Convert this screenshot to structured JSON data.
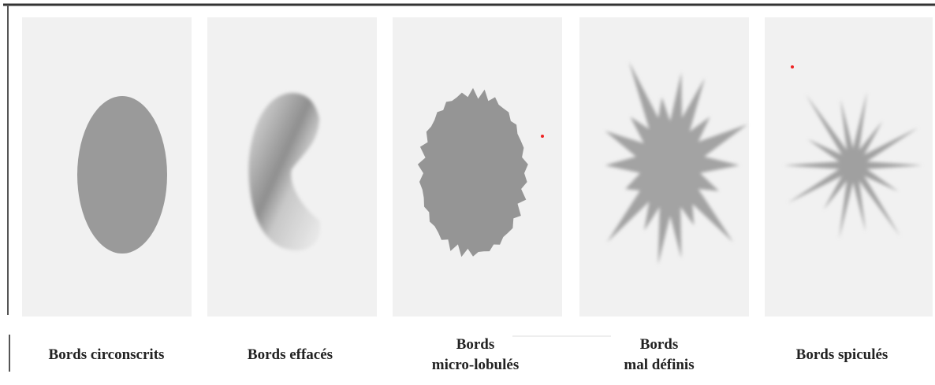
{
  "panels": [
    {
      "label_lines": [
        "Bords circonscrits"
      ]
    },
    {
      "label_lines": [
        "Bords effacés"
      ]
    },
    {
      "label_lines": [
        "Bords",
        "micro-lobulés"
      ]
    },
    {
      "label_lines": [
        "Bords",
        "mal définis"
      ]
    },
    {
      "label_lines": [
        "Bords spiculés"
      ]
    }
  ]
}
